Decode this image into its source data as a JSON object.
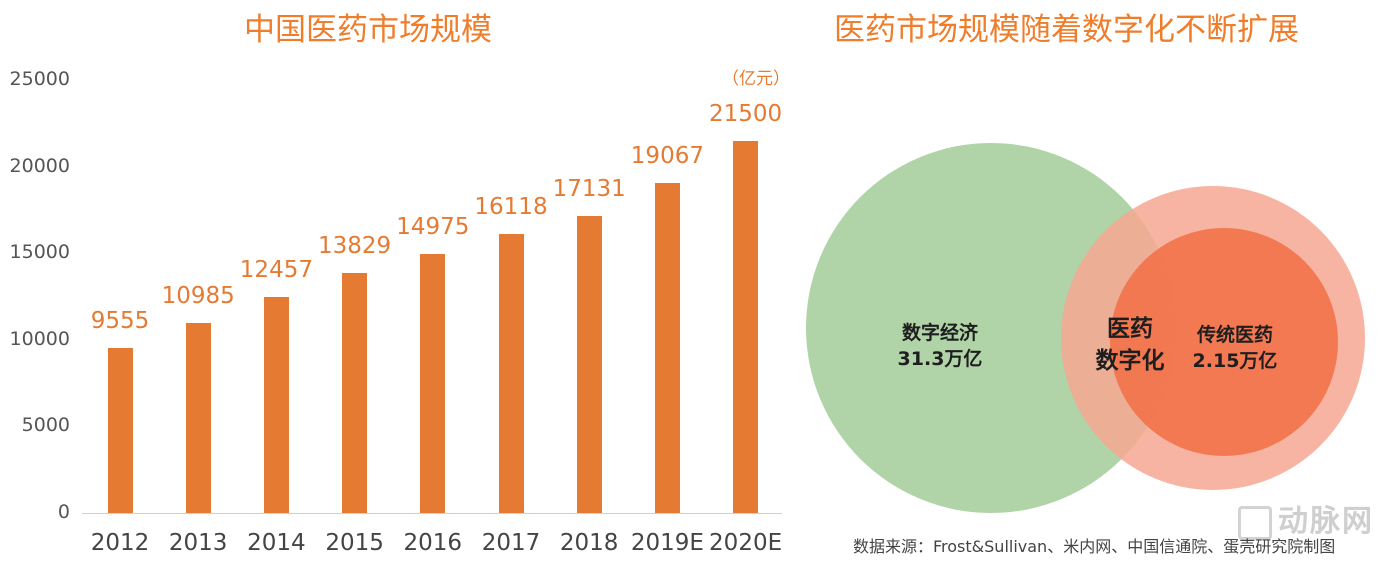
{
  "left_chart": {
    "title": "中国医药市场规模",
    "unit": "（亿元）"
  },
  "right_chart": {
    "title": "医药市场规模随着数字化不断扩展",
    "circles": {
      "digital_economy": {
        "name": "数字经济",
        "value": "31.3万亿",
        "color": "#b0d3a8"
      },
      "traditional_medicine": {
        "name": "传统医药",
        "value": "2.15万亿",
        "color": "#f26f45"
      },
      "outer_ring_color": "#f7a792",
      "overlap": {
        "line1": "医药",
        "line2": "数字化",
        "color": "#d4946e"
      }
    },
    "source": "数据来源：Frost&Sullivan、米内网、中国信通院、蛋壳研究院制图",
    "watermark": "动脉网"
  },
  "chart_data": [
    {
      "type": "bar",
      "title": "中国医药市场规模",
      "xlabel": "",
      "ylabel": "（亿元）",
      "categories": [
        "2012",
        "2013",
        "2014",
        "2015",
        "2016",
        "2017",
        "2018",
        "2019E",
        "2020E"
      ],
      "values": [
        9555,
        10985,
        12457,
        13829,
        14975,
        16118,
        17131,
        19067,
        21500
      ],
      "labels": [
        "9555",
        "10985",
        "12457",
        "13829",
        "14975",
        "16118",
        "17131",
        "19067",
        "21500"
      ],
      "yticks": [
        "0",
        "5000",
        "10000",
        "15000",
        "20000",
        "25000"
      ],
      "ylim": [
        0,
        25000
      ],
      "grid": false,
      "color": "#e57a32"
    },
    {
      "type": "venn",
      "title": "医药市场规模随着数字化不断扩展",
      "sets": [
        {
          "label": "数字经济",
          "value": "31.3万亿"
        },
        {
          "label": "传统医药",
          "value": "2.15万亿"
        }
      ],
      "intersection": "医药数字化"
    }
  ]
}
